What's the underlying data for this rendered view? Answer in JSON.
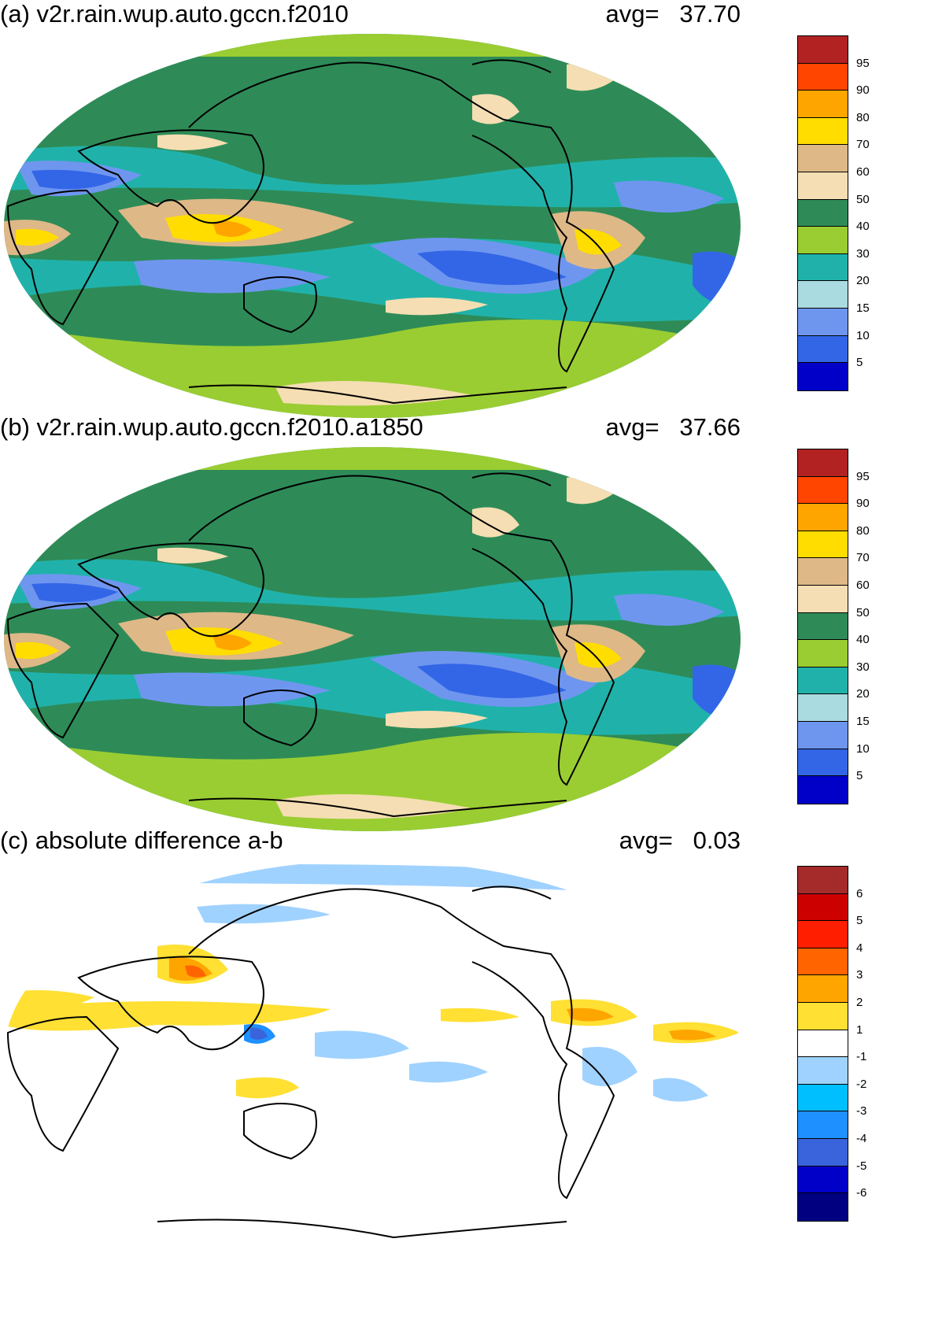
{
  "panels": [
    {
      "title": "(a) v2r.rain.wup.auto.gccn.f2010",
      "avg_label": "avg=",
      "avg_value": "37.70",
      "colorbar": {
        "colors": [
          "#0000c8",
          "#3366e6",
          "#6f96ef",
          "#aadbe0",
          "#20b2aa",
          "#9acd32",
          "#2e8b57",
          "#f5deb3",
          "#deb887",
          "#ffdd00",
          "#ffa500",
          "#ff4500",
          "#b22222"
        ],
        "labels": [
          "5",
          "10",
          "15",
          "20",
          "30",
          "40",
          "50",
          "60",
          "70",
          "80",
          "90",
          "95"
        ]
      }
    },
    {
      "title": "(b) v2r.rain.wup.auto.gccn.f2010.a1850",
      "avg_label": "avg=",
      "avg_value": "37.66",
      "colorbar": {
        "colors": [
          "#0000c8",
          "#3366e6",
          "#6f96ef",
          "#aadbe0",
          "#20b2aa",
          "#9acd32",
          "#2e8b57",
          "#f5deb3",
          "#deb887",
          "#ffdd00",
          "#ffa500",
          "#ff4500",
          "#b22222"
        ],
        "labels": [
          "5",
          "10",
          "15",
          "20",
          "30",
          "40",
          "50",
          "60",
          "70",
          "80",
          "90",
          "95"
        ]
      }
    },
    {
      "title": "(c) absolute difference a-b",
      "avg_label": "avg=",
      "avg_value": "0.03",
      "colorbar": {
        "colors": [
          "#000080",
          "#0000c8",
          "#3a64dc",
          "#1e90ff",
          "#00bfff",
          "#a0d2ff",
          "#ffffff",
          "#ffe033",
          "#ffa500",
          "#ff6400",
          "#ff1e00",
          "#cd0000",
          "#a52a2a"
        ],
        "labels": [
          "-6",
          "-5",
          "-4",
          "-3",
          "-2",
          "-1",
          "1",
          "2",
          "3",
          "4",
          "5",
          "6"
        ]
      }
    }
  ]
}
